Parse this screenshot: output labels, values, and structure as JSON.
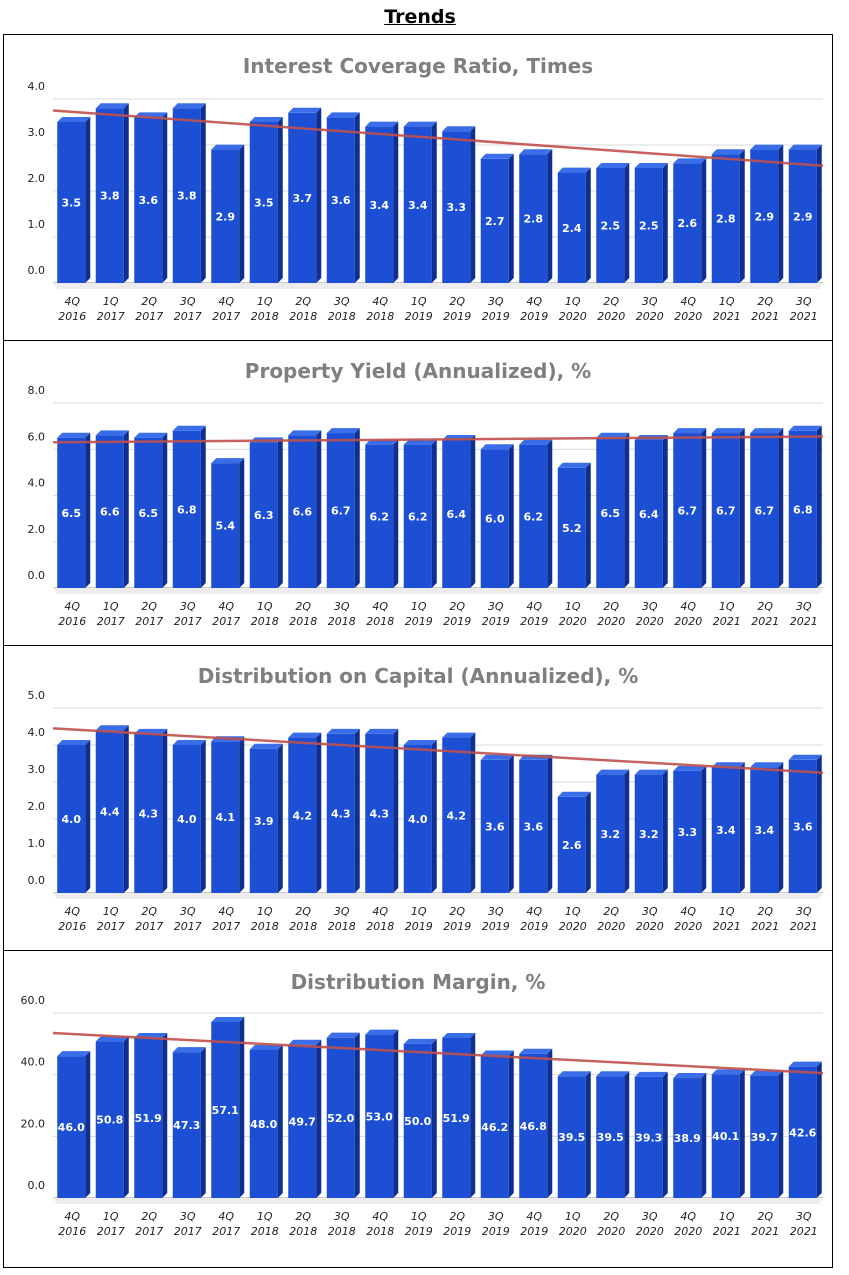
{
  "page": {
    "title": "Trends"
  },
  "colors": {
    "bar_front": "#1c4fd4",
    "bar_side": "#0f2f90",
    "bar_top": "#3a6ee8",
    "trend": "#c0504d",
    "title_gray": "#7f7f7f"
  },
  "chart_data": [
    {
      "type": "bar",
      "title": "Interest Coverage Ratio, Times",
      "categories": [
        "4Q 2016",
        "1Q 2017",
        "2Q 2017",
        "3Q 2017",
        "4Q 2017",
        "1Q 2018",
        "2Q 2018",
        "3Q 2018",
        "4Q 2018",
        "1Q 2019",
        "2Q 2019",
        "3Q 2019",
        "4Q 2019",
        "1Q 2020",
        "2Q 2020",
        "3Q 2020",
        "4Q 2020",
        "1Q 2021",
        "2Q 2021",
        "3Q 2021"
      ],
      "values": [
        3.5,
        3.8,
        3.6,
        3.8,
        2.9,
        3.5,
        3.7,
        3.6,
        3.4,
        3.4,
        3.3,
        2.7,
        2.8,
        2.4,
        2.5,
        2.5,
        2.6,
        2.8,
        2.9,
        2.9
      ],
      "value_labels": [
        "3.5",
        "3.8",
        "3.6",
        "3.8",
        "2.9",
        "3.5",
        "3.7",
        "3.6",
        "3.4",
        "3.4",
        "3.3",
        "2.7",
        "2.8",
        "2.4",
        "2.5",
        "2.5",
        "2.6",
        "2.8",
        "2.9",
        "2.9"
      ],
      "yticks": [
        "0.0",
        "1.0",
        "2.0",
        "3.0",
        "4.0"
      ],
      "ylim": [
        0,
        4
      ],
      "trendline": [
        3.75,
        2.55
      ]
    },
    {
      "type": "bar",
      "title": "Property Yield (Annualized), %",
      "categories": [
        "4Q 2016",
        "1Q 2017",
        "2Q 2017",
        "3Q 2017",
        "4Q 2017",
        "1Q 2018",
        "2Q 2018",
        "3Q 2018",
        "4Q 2018",
        "1Q 2019",
        "2Q 2019",
        "3Q 2019",
        "4Q 2019",
        "1Q 2020",
        "2Q 2020",
        "3Q 2020",
        "4Q 2020",
        "1Q 2021",
        "2Q 2021",
        "3Q 2021"
      ],
      "values": [
        6.5,
        6.6,
        6.5,
        6.8,
        5.4,
        6.3,
        6.6,
        6.7,
        6.2,
        6.2,
        6.4,
        6.0,
        6.2,
        5.2,
        6.5,
        6.4,
        6.7,
        6.7,
        6.7,
        6.8
      ],
      "value_labels": [
        "6.5",
        "6.6",
        "6.5",
        "6.8",
        "5.4",
        "6.3",
        "6.6",
        "6.7",
        "6.2",
        "6.2",
        "6.4",
        "6.0",
        "6.2",
        "5.2",
        "6.5",
        "6.4",
        "6.7",
        "6.7",
        "6.7",
        "6.8"
      ],
      "yticks": [
        "0.0",
        "2.0",
        "4.0",
        "6.0",
        "8.0"
      ],
      "ylim": [
        0,
        8
      ],
      "trendline": [
        6.3,
        6.55
      ]
    },
    {
      "type": "bar",
      "title": "Distribution on Capital (Annualized), %",
      "categories": [
        "4Q 2016",
        "1Q 2017",
        "2Q 2017",
        "3Q 2017",
        "4Q 2017",
        "1Q 2018",
        "2Q 2018",
        "3Q 2018",
        "4Q 2018",
        "1Q 2019",
        "2Q 2019",
        "3Q 2019",
        "4Q 2019",
        "1Q 2020",
        "2Q 2020",
        "3Q 2020",
        "4Q 2020",
        "1Q 2021",
        "2Q 2021",
        "3Q 2021"
      ],
      "values": [
        4.0,
        4.4,
        4.3,
        4.0,
        4.1,
        3.9,
        4.2,
        4.3,
        4.3,
        4.0,
        4.2,
        3.6,
        3.6,
        2.6,
        3.2,
        3.2,
        3.3,
        3.4,
        3.4,
        3.6
      ],
      "value_labels": [
        "4.0",
        "4.4",
        "4.3",
        "4.0",
        "4.1",
        "3.9",
        "4.2",
        "4.3",
        "4.3",
        "4.0",
        "4.2",
        "3.6",
        "3.6",
        "2.6",
        "3.2",
        "3.2",
        "3.3",
        "3.4",
        "3.4",
        "3.6"
      ],
      "yticks": [
        "0.0",
        "1.0",
        "2.0",
        "3.0",
        "4.0",
        "5.0"
      ],
      "ylim": [
        0,
        5
      ],
      "trendline": [
        4.45,
        3.25
      ]
    },
    {
      "type": "bar",
      "title": "Distribution Margin, %",
      "categories": [
        "4Q 2016",
        "1Q 2017",
        "2Q 2017",
        "3Q 2017",
        "4Q 2017",
        "1Q 2018",
        "2Q 2018",
        "3Q 2018",
        "4Q 2018",
        "1Q 2019",
        "2Q 2019",
        "3Q 2019",
        "4Q 2019",
        "1Q 2020",
        "2Q 2020",
        "3Q 2020",
        "4Q 2020",
        "1Q 2021",
        "2Q 2021",
        "3Q 2021"
      ],
      "values": [
        46.0,
        50.8,
        51.9,
        47.3,
        57.1,
        48.0,
        49.7,
        52.0,
        53.0,
        50.0,
        51.9,
        46.2,
        46.8,
        39.5,
        39.5,
        39.3,
        38.9,
        40.1,
        39.7,
        42.6
      ],
      "value_labels": [
        "46.0",
        "50.8",
        "51.9",
        "47.3",
        "57.1",
        "48.0",
        "49.7",
        "52.0",
        "53.0",
        "50.0",
        "51.9",
        "46.2",
        "46.8",
        "39.5",
        "39.5",
        "39.3",
        "38.9",
        "40.1",
        "39.7",
        "42.6"
      ],
      "yticks": [
        "0.0",
        "20.0",
        "40.0",
        "60.0"
      ],
      "ylim": [
        0,
        60
      ],
      "trendline": [
        53.5,
        40.5
      ]
    }
  ]
}
